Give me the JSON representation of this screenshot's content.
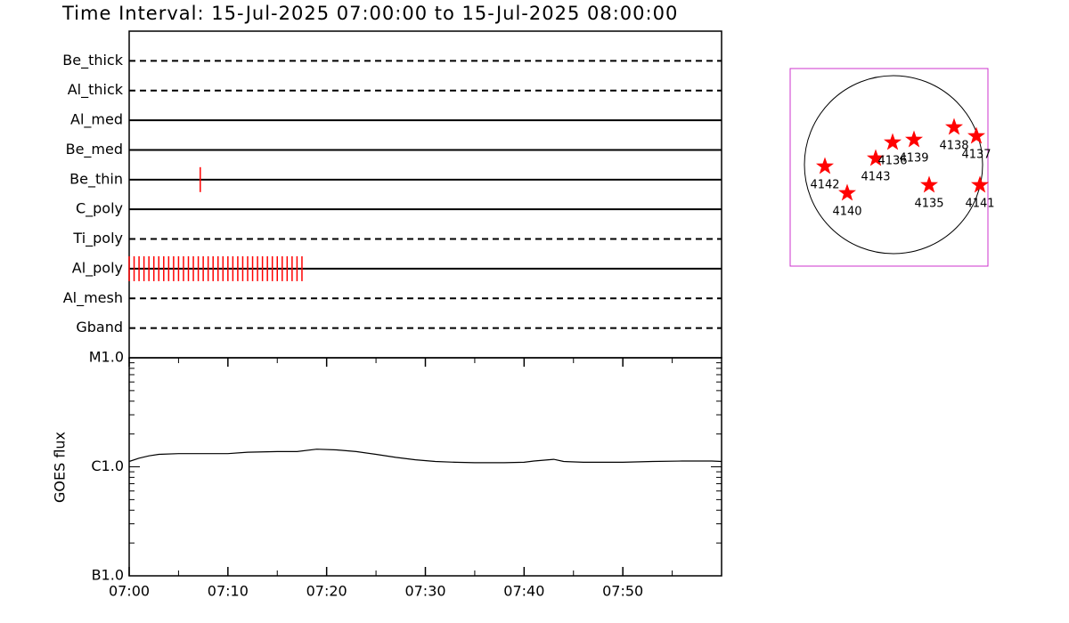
{
  "chart_data": [
    {
      "type": "timeline",
      "title": "Time Interval: 15-Jul-2025 07:00:00 to 15-Jul-2025 08:00:00",
      "categories": [
        "Be_thick",
        "Al_thick",
        "Al_med",
        "Be_med",
        "Be_thin",
        "C_poly",
        "Ti_poly",
        "Al_poly",
        "Al_mesh",
        "Gband"
      ],
      "line_styles": [
        "dashed",
        "dashed",
        "solid",
        "solid",
        "solid",
        "solid",
        "dashed",
        "solid",
        "dashed",
        "dashed"
      ],
      "events": [
        [],
        [],
        [],
        [],
        [
          7.2
        ],
        [],
        [],
        [
          0,
          0.5,
          1,
          1.5,
          2,
          2.5,
          3,
          3.5,
          4,
          4.5,
          5,
          5.5,
          6,
          6.5,
          7,
          7.5,
          8,
          8.5,
          9,
          9.5,
          10,
          10.5,
          11,
          11.5,
          12,
          12.5,
          13,
          13.5,
          14,
          14.5,
          15,
          15.5,
          16,
          16.5,
          17,
          17.5
        ],
        [],
        []
      ],
      "color": "#ff0000",
      "xlim": [
        0,
        60
      ]
    },
    {
      "type": "line",
      "ylabel": "GOES flux",
      "x": [
        0,
        1,
        2,
        3,
        5,
        10,
        12,
        15,
        17,
        19,
        21,
        23,
        25,
        27,
        29,
        31,
        33,
        35,
        38,
        40,
        41,
        43,
        44,
        46,
        50,
        53,
        56,
        59,
        60
      ],
      "values": [
        1.12e-06,
        1.2e-06,
        1.26e-06,
        1.3e-06,
        1.32e-06,
        1.32e-06,
        1.36e-06,
        1.38e-06,
        1.38e-06,
        1.45e-06,
        1.43e-06,
        1.38e-06,
        1.3e-06,
        1.22e-06,
        1.16e-06,
        1.12e-06,
        1.1e-06,
        1.09e-06,
        1.09e-06,
        1.1e-06,
        1.13e-06,
        1.17e-06,
        1.12e-06,
        1.1e-06,
        1.1e-06,
        1.12e-06,
        1.13e-06,
        1.13e-06,
        1.12e-06
      ],
      "color": "#000000",
      "log_y": true,
      "ylim": [
        1e-07,
        1e-05
      ],
      "yticks": [
        {
          "value": 1e-05,
          "label": "M1.0"
        },
        {
          "value": 1e-06,
          "label": "C1.0"
        },
        {
          "value": 1e-07,
          "label": "B1.0"
        }
      ],
      "minor_yticks": [
        2e-07,
        3e-07,
        4e-07,
        5e-07,
        6e-07,
        7e-07,
        8e-07,
        9e-07,
        2e-06,
        3e-06,
        4e-06,
        5e-06,
        6e-06,
        7e-06,
        8e-06,
        9e-06
      ],
      "xlim": [
        0,
        60
      ],
      "xticks": [
        {
          "value": 0,
          "label": "07:00"
        },
        {
          "value": 10,
          "label": "07:10"
        },
        {
          "value": 20,
          "label": "07:20"
        },
        {
          "value": 30,
          "label": "07:30"
        },
        {
          "value": 40,
          "label": "07:40"
        },
        {
          "value": 50,
          "label": "07:50"
        }
      ],
      "minor_xticks": [
        5,
        15,
        25,
        35,
        45,
        55
      ]
    },
    {
      "type": "scatter",
      "labels": [
        "4142",
        "4140",
        "4143",
        "4136",
        "4139",
        "4138",
        "4137",
        "4135",
        "4141"
      ],
      "x": [
        -0.77,
        -0.52,
        -0.2,
        -0.01,
        0.23,
        0.68,
        0.93,
        0.4,
        0.97
      ],
      "y": [
        -0.02,
        -0.32,
        0.07,
        0.25,
        0.28,
        0.42,
        0.32,
        -0.23,
        -0.23
      ],
      "color": "#ff0000",
      "xlim": [
        -1.16,
        1.06
      ],
      "ylim": [
        -1.14,
        1.08
      ]
    }
  ]
}
